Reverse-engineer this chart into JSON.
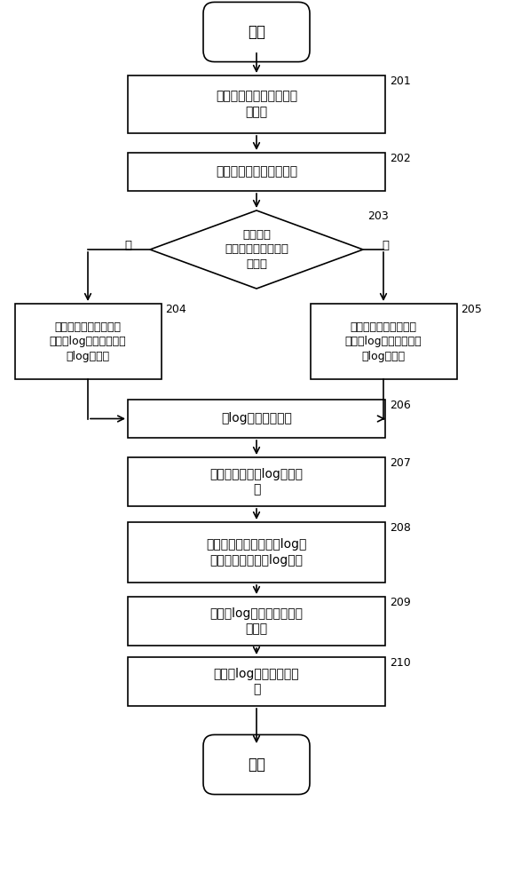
{
  "bg_color": "#ffffff",
  "nodes": {
    "start": {
      "text": "开始"
    },
    "s201": {
      "text": "扫描终端设备中所有的电\n子器件",
      "label": "201"
    },
    "s202": {
      "text": "获取各个电子器件的信息",
      "label": "202"
    },
    "s203": {
      "text": "判断获取\n的信息与预设信息是\n否匹配",
      "label": "203"
    },
    "s204": {
      "text": "将用于指示该电子器件\n正常的log打印标识添加\n到log文件中",
      "label": "204"
    },
    "s205": {
      "text": "将用于指示该电子器件\n异常的log打印标识添加\n到log文件中",
      "label": "205"
    },
    "s206": {
      "text": "对log文件进行分析",
      "label": "206"
    },
    "s207": {
      "text": "提取出现异常的log打印标\n识",
      "label": "207"
    },
    "s208": {
      "text": "根据提取的出现异常的log打\n印标识，生成故障log文件",
      "label": "208"
    },
    "s209": {
      "text": "将故障log文件存储至指定\n的目录",
      "label": "209"
    },
    "s210": {
      "text": "将故障log文件上传至后\n台",
      "label": "210"
    },
    "end": {
      "text": "结束"
    }
  },
  "yes_label": "是",
  "no_label": "否"
}
